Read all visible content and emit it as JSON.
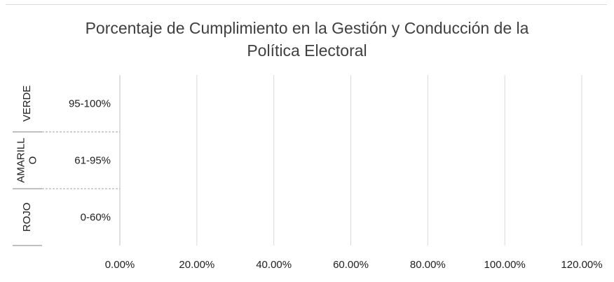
{
  "chart_data": {
    "type": "bar",
    "orientation": "horizontal",
    "title": "Porcentaje de Cumplimiento en la Gestión y Conducción de la Política Electoral",
    "title_lines": [
      "Porcentaje de Cumplimiento en la Gestión y Conducción de la",
      "Política Electoral"
    ],
    "categories": [
      {
        "group": "VERDE",
        "group_lines": [
          "VERDE"
        ],
        "label": "95-100%"
      },
      {
        "group": "AMARILLO",
        "group_lines": [
          "AMARILL",
          "O"
        ],
        "label": "61-95%"
      },
      {
        "group": "ROJO",
        "group_lines": [
          "ROJO"
        ],
        "label": "0-60%"
      }
    ],
    "values": [
      0,
      0,
      0
    ],
    "xlim": [
      0,
      1.2
    ],
    "x_ticks": [
      0,
      0.2,
      0.4,
      0.6,
      0.8,
      1.0,
      1.2
    ],
    "x_tick_labels": [
      "0.00%",
      "20.00%",
      "40.00%",
      "60.00%",
      "80.00%",
      "100.00%",
      "120.00%"
    ],
    "xlabel": "",
    "ylabel": "",
    "grid": "vertical",
    "legend": "none",
    "colors": {
      "grid": "#d9d9d9",
      "axis": "#bfbfbf",
      "text": "#202020",
      "title": "#404040"
    }
  }
}
